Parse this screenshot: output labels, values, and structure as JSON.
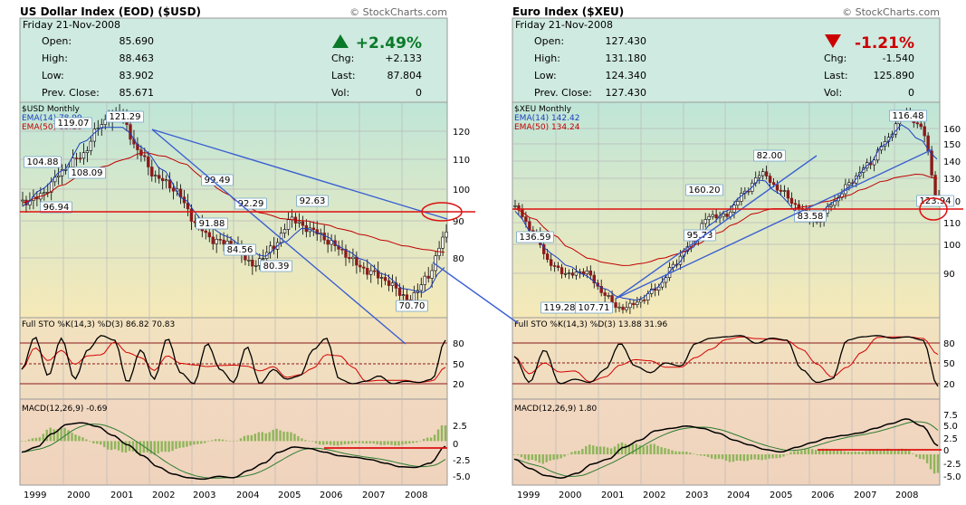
{
  "charts": [
    {
      "title": "US Dollar Index (EOD) ($USD)",
      "copyright": "© StockCharts.com",
      "date": "Friday  21-Nov-2008",
      "quote": {
        "open_label": "Open:",
        "open": "85.690",
        "high_label": "High:",
        "high": "88.463",
        "low_label": "Low:",
        "low": "83.902",
        "prev_label": "Prev. Close:",
        "prev": "85.671",
        "pct": "+2.49%",
        "chg_label": "Chg:",
        "chg": "+2.133",
        "last_label": "Last:",
        "last": "87.804",
        "vol_label": "Vol:",
        "vol": "0",
        "direction": "up"
      },
      "price_legend": [
        "$USD Monthly",
        "EMA(14) 78.99",
        "EMA(50) 83.18"
      ],
      "sto_legend": "Full STO %K(14,3) %D(3)  86.82  70.83",
      "macd_legend": "MACD(12,26,9)  -0.69",
      "x_labels": [
        "1999",
        "2000",
        "2001",
        "2002",
        "2003",
        "2004",
        "2005",
        "2006",
        "2007",
        "2008"
      ],
      "price_ticks": [
        "120",
        "110",
        "100",
        "90",
        "80"
      ],
      "sto_ticks": [
        "80",
        "50",
        "20"
      ],
      "macd_ticks": [
        "2.5",
        "0",
        "-2.5",
        "-5.0"
      ],
      "annotations": [
        "104.88",
        "119.07",
        "121.29",
        "108.09",
        "96.94",
        "99.49",
        "92.29",
        "91.88",
        "84.56",
        "80.39",
        "92.63",
        "70.70"
      ]
    },
    {
      "title": "Euro Index ($XEU)",
      "copyright": "© StockCharts.com",
      "date": "Friday  21-Nov-2008",
      "quote": {
        "open_label": "Open:",
        "open": "127.430",
        "high_label": "High:",
        "high": "131.180",
        "low_label": "Low:",
        "low": "124.340",
        "prev_label": "Prev. Close:",
        "prev": "127.430",
        "pct": "-1.21%",
        "chg_label": "Chg:",
        "chg": "-1.540",
        "last_label": "Last:",
        "last": "125.890",
        "vol_label": "Vol:",
        "vol": "0",
        "direction": "down"
      },
      "price_legend": [
        "$XEU Monthly",
        "EMA(14) 142.42",
        "EMA(50) 134.24"
      ],
      "sto_legend": "Full STO %K(14,3) %D(3)  13.88  31.96",
      "macd_legend": "MACD(12,26,9)  1.80",
      "x_labels": [
        "1999",
        "2000",
        "2001",
        "2002",
        "2003",
        "2004",
        "2005",
        "2006",
        "2007",
        "2008"
      ],
      "price_ticks": [
        "160",
        "150",
        "140",
        "130",
        "120",
        "110",
        "100",
        "90"
      ],
      "sto_ticks": [
        "80",
        "50",
        "20"
      ],
      "macd_ticks": [
        "7.5",
        "5.0",
        "2.5",
        "0",
        "-2.5",
        "-5.0"
      ],
      "annotations": [
        "160.20",
        "136.59",
        "119.28",
        "107.71",
        "95.73",
        "82.00",
        "83.58",
        "116.48",
        "123.94"
      ]
    }
  ],
  "chart_data": [
    {
      "type": "line",
      "title": "US Dollar Index (EOD) ($USD)",
      "x": [
        "1999",
        "2000",
        "2001",
        "2002",
        "2003",
        "2004",
        "2005",
        "2006",
        "2007",
        "2008",
        "2008-11"
      ],
      "series": [
        {
          "name": "$USD Monthly",
          "values": [
            96.9,
            104.9,
            119.1,
            121.3,
            99.5,
            84.6,
            80.4,
            92.6,
            82.0,
            70.7,
            87.8
          ]
        },
        {
          "name": "EMA(50) 83.18",
          "values": [
            97.0,
            102.0,
            107.0,
            111.0,
            109.0,
            101.0,
            94.0,
            92.0,
            89.0,
            84.0,
            83.2
          ]
        }
      ],
      "ylim": [
        65,
        125
      ]
    },
    {
      "type": "line",
      "title": "Euro Index ($XEU)",
      "x": [
        "1999",
        "2000",
        "2001",
        "2002",
        "2003",
        "2004",
        "2005",
        "2006",
        "2007",
        "2008",
        "2008-11"
      ],
      "series": [
        {
          "name": "$XEU Monthly",
          "values": [
            123.0,
            100.0,
            95.7,
            82.0,
            107.7,
            119.3,
            136.6,
            116.5,
            140.0,
            160.2,
            125.9
          ]
        },
        {
          "name": "EMA(50) 134.24",
          "values": [
            122.0,
            112.0,
            102.0,
            100.0,
            104.0,
            112.0,
            120.0,
            122.0,
            127.0,
            135.0,
            134.2
          ]
        }
      ],
      "ylim": [
        78,
        165
      ]
    }
  ]
}
